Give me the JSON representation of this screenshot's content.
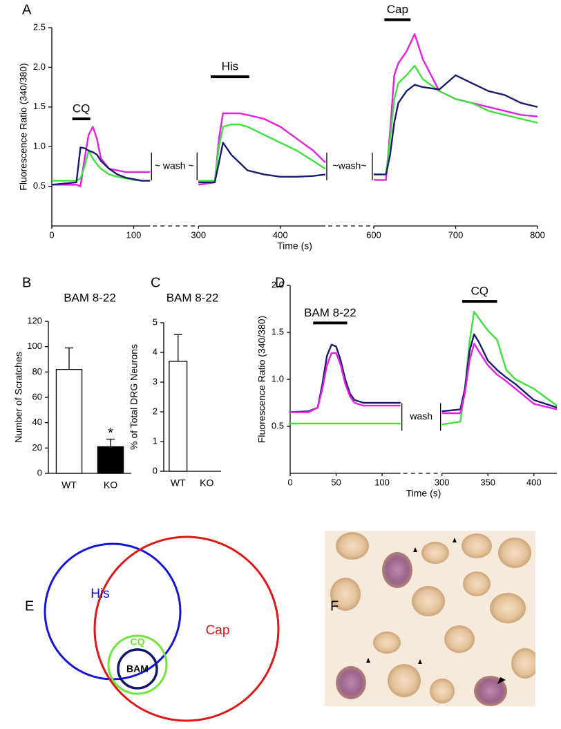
{
  "chart_data": [
    {
      "panel": "A",
      "type": "line",
      "ylabel": "Fluorescence Ratio (340/380)",
      "xlabel": "Time (s)",
      "xlim": [
        0,
        800
      ],
      "xbreaks": [
        [
          120,
          300
        ],
        [
          455,
          600
        ]
      ],
      "break_labels": [
        "~ wash ~",
        "~wash~"
      ],
      "xticks": [
        0,
        100,
        300,
        400,
        600,
        700,
        800
      ],
      "ylim": [
        0,
        2.5
      ],
      "yticks": [
        0.5,
        {
          "value": 1,
          "label": "1.0"
        },
        1.5,
        {
          "value": 2,
          "label": "2.0"
        },
        2.5
      ],
      "x": [
        0,
        30,
        35,
        40,
        45,
        50,
        55,
        60,
        70,
        80,
        90,
        100,
        110,
        120,
        300,
        320,
        325,
        330,
        340,
        350,
        360,
        380,
        400,
        420,
        440,
        455,
        600,
        615,
        620,
        625,
        630,
        640,
        650,
        660,
        680,
        700,
        720,
        740,
        760,
        780,
        800
      ],
      "series": [
        {
          "color": "#e61ee6",
          "values": [
            0.52,
            0.52,
            0.5,
            0.85,
            1.15,
            1.25,
            1.1,
            0.85,
            0.72,
            0.7,
            0.68,
            0.68,
            0.68,
            0.68,
            0.52,
            0.55,
            1.1,
            1.42,
            1.42,
            1.42,
            1.4,
            1.35,
            1.25,
            1.1,
            0.95,
            0.8,
            0.58,
            0.58,
            1.2,
            1.9,
            2.05,
            2.2,
            2.42,
            2.1,
            1.7,
            1.6,
            1.55,
            1.5,
            1.45,
            1.4,
            1.38
          ]
        },
        {
          "color": "#3ee03e",
          "values": [
            0.57,
            0.57,
            0.6,
            0.75,
            0.95,
            0.85,
            0.78,
            0.72,
            0.65,
            0.62,
            0.6,
            0.58,
            0.57,
            0.57,
            0.57,
            0.57,
            1.0,
            1.25,
            1.28,
            1.28,
            1.25,
            1.15,
            1.05,
            0.95,
            0.82,
            0.72,
            0.65,
            0.65,
            1.1,
            1.6,
            1.8,
            1.9,
            2.02,
            1.85,
            1.7,
            1.6,
            1.55,
            1.45,
            1.4,
            1.35,
            1.3
          ]
        },
        {
          "color": "#1b1b6e",
          "values": [
            0.52,
            0.55,
            0.99,
            0.98,
            0.95,
            0.93,
            0.9,
            0.82,
            0.72,
            0.65,
            0.61,
            0.59,
            0.57,
            0.57,
            0.55,
            0.55,
            0.8,
            1.05,
            0.9,
            0.8,
            0.7,
            0.65,
            0.62,
            0.62,
            0.63,
            0.65,
            0.65,
            0.65,
            0.9,
            1.3,
            1.55,
            1.7,
            1.78,
            1.75,
            1.72,
            1.9,
            1.8,
            1.7,
            1.65,
            1.55,
            1.5
          ]
        }
      ],
      "bars": [
        {
          "label": "CQ",
          "x": [
            25,
            47
          ],
          "y": 1.35
        },
        {
          "label": "His",
          "x": [
            315,
            362
          ],
          "y": 1.88
        },
        {
          "label": "Cap",
          "x": [
            613,
            645
          ],
          "y": 2.6
        }
      ]
    },
    {
      "panel": "B",
      "type": "bar",
      "title": "BAM 8-22",
      "ylabel": "Number of Scratches",
      "categories": [
        "WT",
        "KO"
      ],
      "values": [
        82,
        21
      ],
      "errors": [
        17,
        6
      ],
      "colors": [
        "#ffffff",
        "#000000"
      ],
      "significance": [
        null,
        "*"
      ],
      "ylim": [
        0,
        120
      ],
      "yticks": [
        0,
        20,
        40,
        60,
        80,
        100,
        120
      ]
    },
    {
      "panel": "C",
      "type": "bar",
      "title": "BAM 8-22",
      "ylabel": "% of Total DRG Neurons",
      "categories": [
        "WT",
        "KO"
      ],
      "values": [
        3.7,
        0
      ],
      "errors": [
        0.9,
        0
      ],
      "colors": [
        "#ffffff",
        "#000000"
      ],
      "ylim": [
        0,
        5
      ],
      "yticks": [
        0,
        1,
        2,
        3,
        4,
        5
      ]
    },
    {
      "panel": "D",
      "type": "line",
      "ylabel": "Fluorescence Ratio (340/380)",
      "xlabel": "Time (s)",
      "xlim": [
        0,
        425
      ],
      "xbreaks": [
        [
          120,
          300
        ]
      ],
      "break_labels": [
        "wash"
      ],
      "xticks": [
        0,
        50,
        100,
        300,
        350,
        400
      ],
      "ylim": [
        0,
        2
      ],
      "yticks": [
        0.5,
        {
          "value": 1,
          "label": "1.0"
        },
        1.5,
        {
          "value": 2,
          "label": "2.0"
        }
      ],
      "x": [
        0,
        20,
        30,
        35,
        40,
        45,
        50,
        55,
        60,
        65,
        70,
        80,
        100,
        120,
        300,
        320,
        325,
        330,
        335,
        340,
        350,
        360,
        370,
        380,
        400,
        425
      ],
      "series": [
        {
          "color": "#3ee03e",
          "values": [
            0.53,
            0.53,
            0.53,
            0.53,
            0.53,
            0.53,
            0.53,
            0.53,
            0.53,
            0.53,
            0.53,
            0.53,
            0.53,
            0.53,
            0.52,
            0.55,
            0.9,
            1.4,
            1.72,
            1.65,
            1.52,
            1.42,
            1.1,
            1.0,
            0.9,
            0.72
          ]
        },
        {
          "color": "#1b1b6e",
          "values": [
            0.65,
            0.66,
            0.7,
            0.95,
            1.25,
            1.37,
            1.35,
            1.2,
            1.0,
            0.85,
            0.78,
            0.75,
            0.75,
            0.75,
            0.66,
            0.68,
            0.9,
            1.3,
            1.48,
            1.4,
            1.2,
            1.1,
            1.02,
            0.95,
            0.78,
            0.7
          ]
        },
        {
          "color": "#e61ee6",
          "values": [
            0.65,
            0.65,
            0.7,
            0.9,
            1.15,
            1.28,
            1.28,
            1.15,
            0.95,
            0.82,
            0.75,
            0.72,
            0.72,
            0.72,
            0.64,
            0.64,
            0.85,
            1.2,
            1.38,
            1.3,
            1.15,
            1.05,
            0.98,
            0.9,
            0.74,
            0.68
          ]
        }
      ],
      "bars": [
        {
          "label": "BAM 8-22",
          "x": [
            25,
            62
          ],
          "y": 1.6
        },
        {
          "label": "CQ",
          "x": [
            322,
            360
          ],
          "y": 1.83
        }
      ]
    }
  ],
  "venn": {
    "panel": "E",
    "sets": [
      "His",
      "Cap",
      "CQ",
      "BAM"
    ]
  },
  "image": {
    "panel": "F"
  }
}
